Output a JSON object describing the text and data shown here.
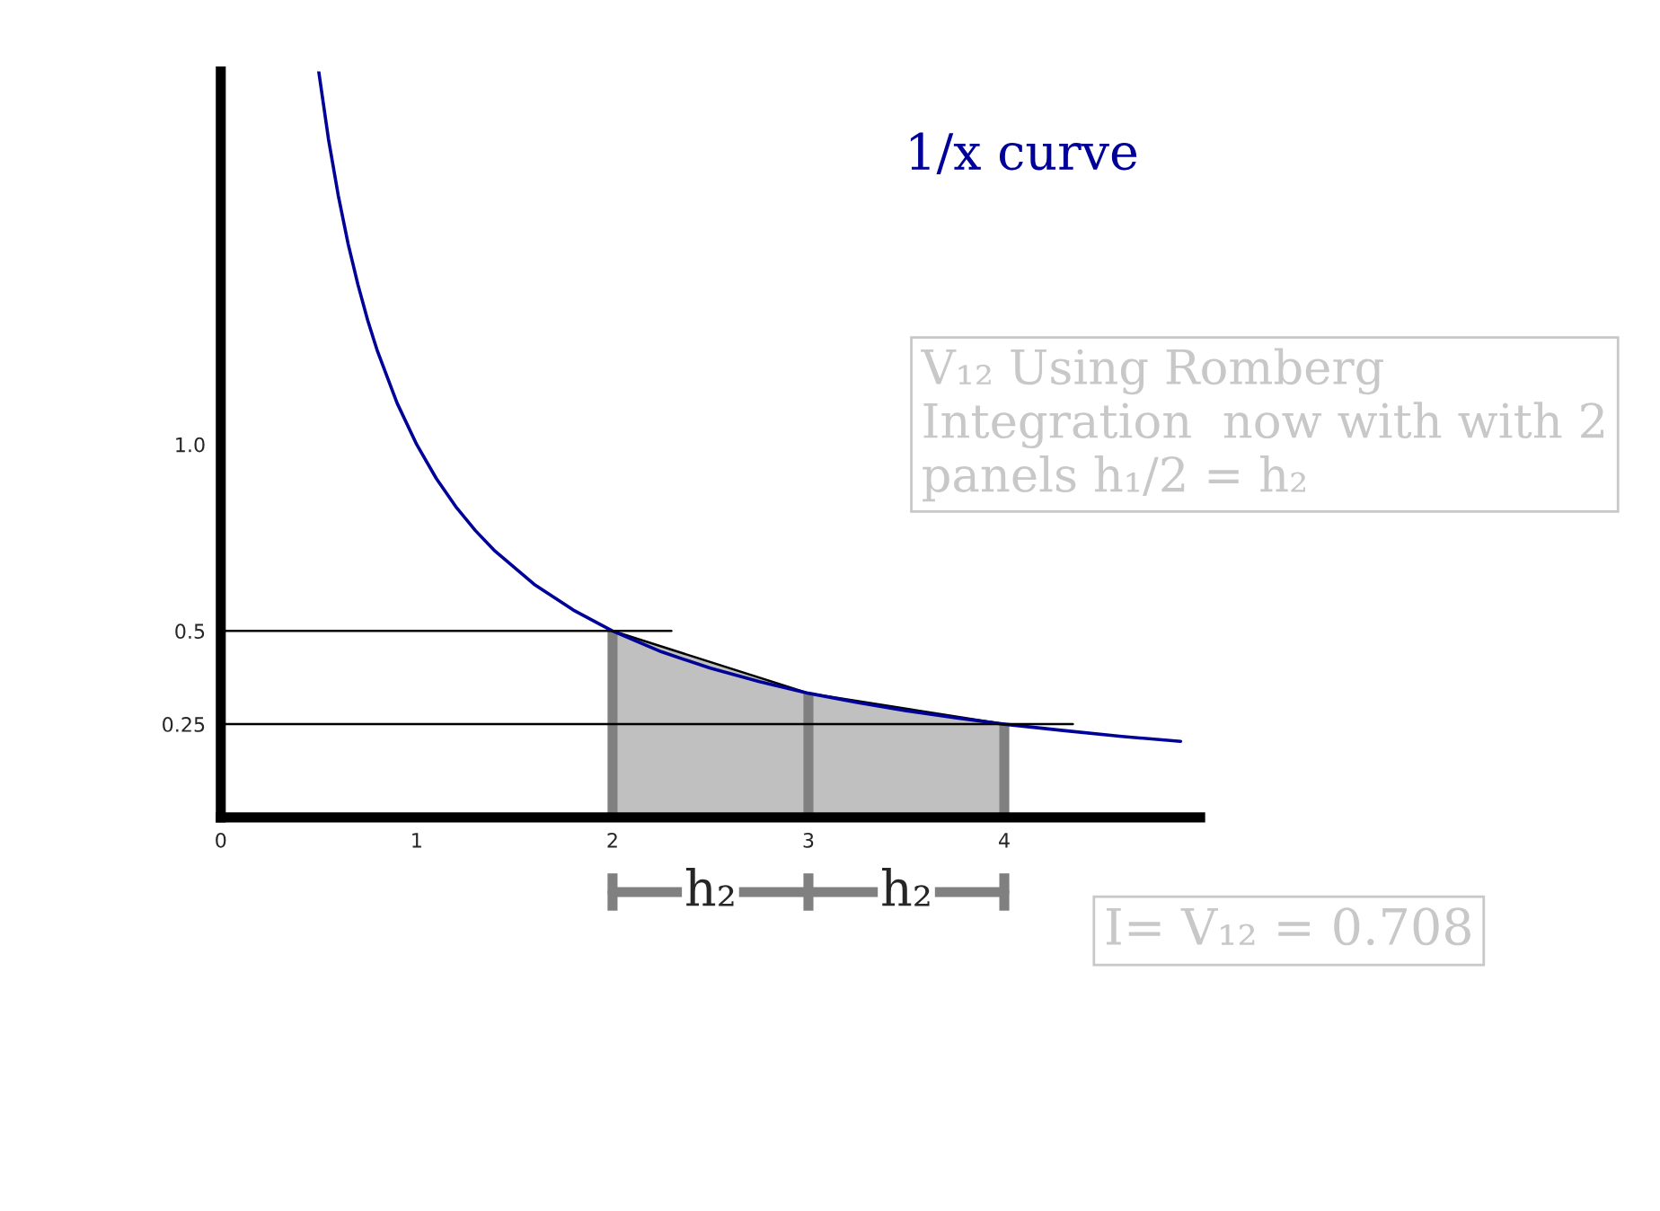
{
  "chart_data": {
    "type": "line",
    "title": "1/x curve",
    "x": [
      0.5,
      0.55,
      0.6,
      0.65,
      0.7,
      0.75,
      0.8,
      0.9,
      1.0,
      1.1,
      1.2,
      1.3,
      1.4,
      1.6,
      1.8,
      2.0,
      2.25,
      2.5,
      2.75,
      3.0,
      3.25,
      3.5,
      3.75,
      4.0,
      4.3,
      4.6,
      4.9
    ],
    "series": [
      {
        "type": "area",
        "color": "#c0c0c0",
        "x": [
          2,
          3,
          4
        ],
        "values": [
          0.5,
          0.333,
          0.25
        ]
      },
      {
        "color": "#000099",
        "values": [
          2.0,
          1.818,
          1.667,
          1.538,
          1.429,
          1.333,
          1.25,
          1.111,
          1.0,
          0.909,
          0.833,
          0.769,
          0.714,
          0.625,
          0.556,
          0.5,
          0.444,
          0.4,
          0.364,
          0.333,
          0.308,
          0.286,
          0.267,
          0.25,
          0.233,
          0.217,
          0.204
        ]
      },
      {
        "color": "#000000",
        "x": [
          0,
          2.3
        ],
        "values": [
          0.5,
          0.5
        ]
      },
      {
        "color": "#000000",
        "x": [
          0,
          4.35
        ],
        "values": [
          0.25,
          0.25
        ]
      }
    ],
    "xlim": [
      0,
      5.0
    ],
    "ylim": [
      0,
      2.0
    ],
    "xticks": [
      0,
      1,
      2,
      3,
      4
    ],
    "yticks": [
      0.25,
      0.5,
      {
        "value": 1.0,
        "label": "1.0"
      }
    ],
    "annotations": [
      "V₁₂ Using Romberg Integration  now with with 2 panels h₁/2 = h₂",
      "I= V₁₂ = 0.708",
      "h₂",
      "h₂"
    ]
  }
}
